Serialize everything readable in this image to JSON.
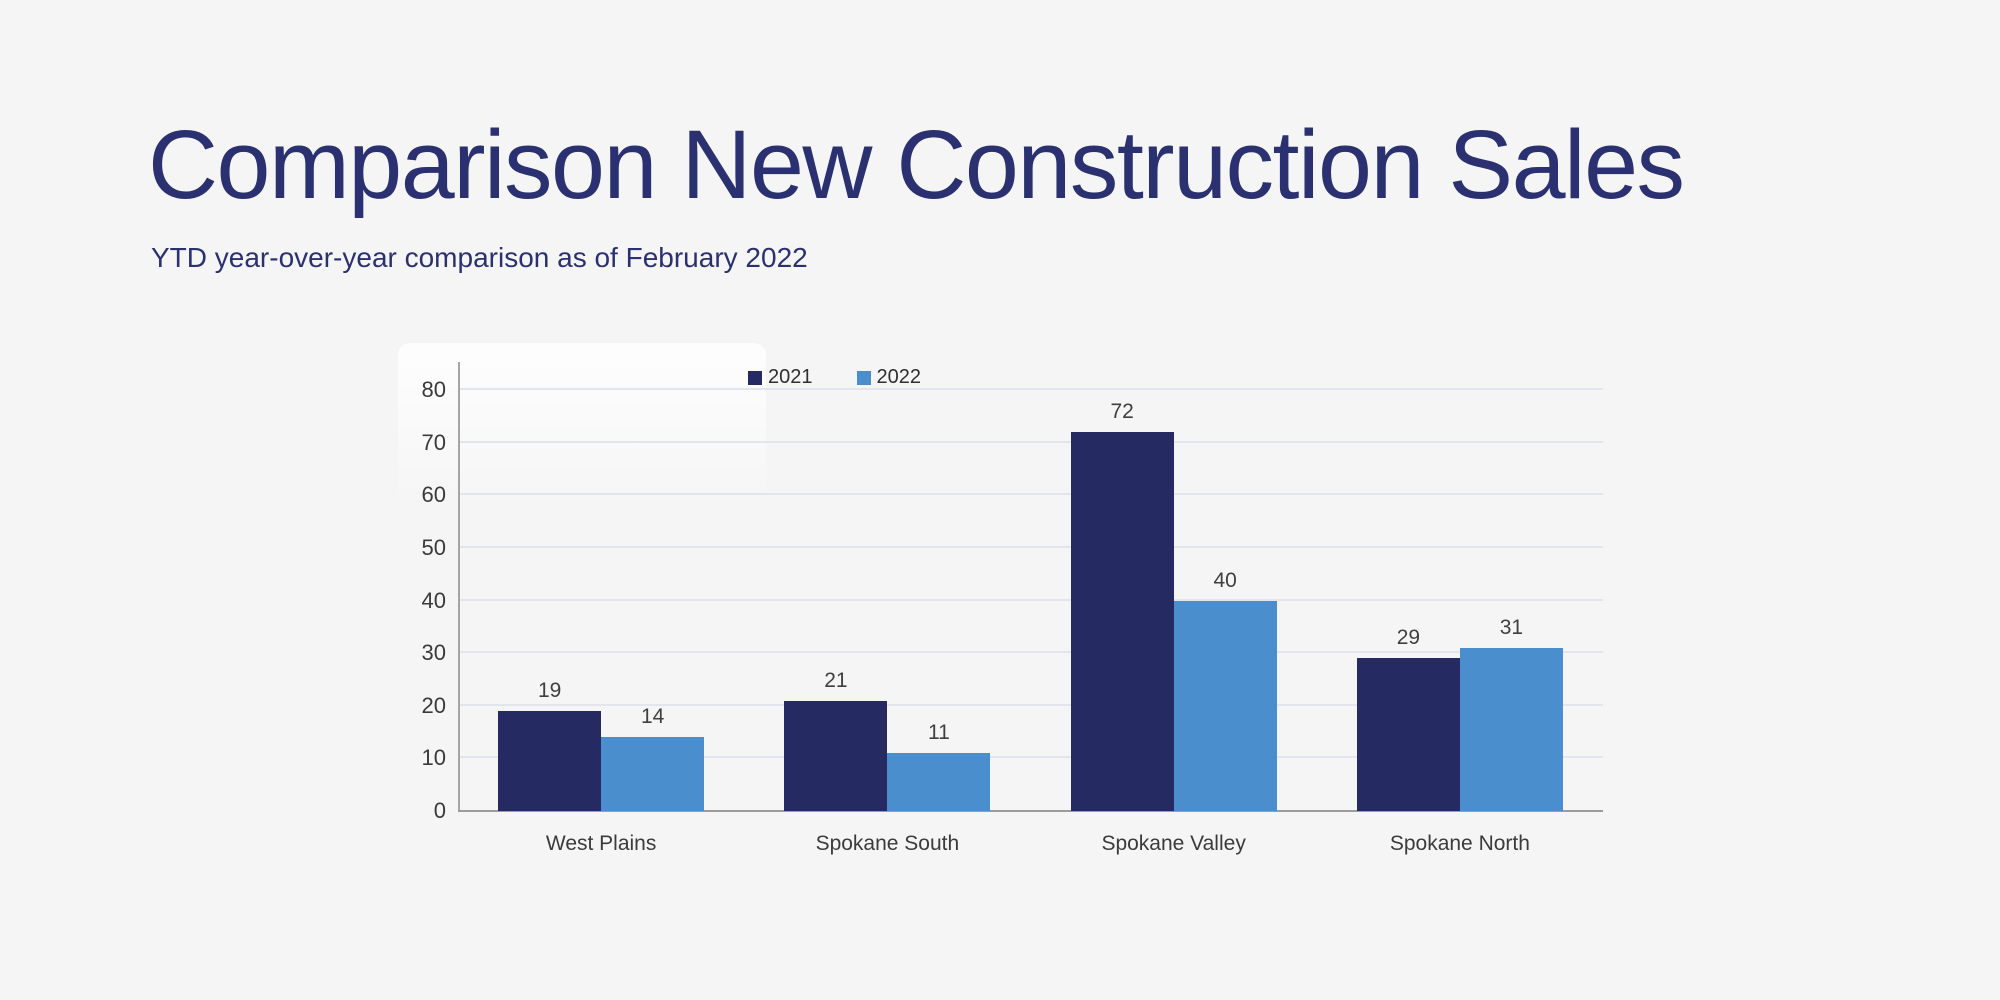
{
  "header": {
    "title": "Comparison New Construction Sales",
    "subtitle": "YTD year-over-year comparison as of February 2022"
  },
  "colors": {
    "background": "#f5f5f6",
    "title_text": "#2b3170",
    "gridline": "#e2e5ee",
    "axis_line": "#a5a5a5",
    "label_text": "#3f3f3f",
    "series_2021": "#252a63",
    "series_2022": "#4b8ecd"
  },
  "chart_data": {
    "type": "bar",
    "categories": [
      "West Plains",
      "Spokane South",
      "Spokane Valley",
      "Spokane North"
    ],
    "series": [
      {
        "name": "2021",
        "color": "#252a63",
        "values": [
          19,
          21,
          72,
          29
        ]
      },
      {
        "name": "2022",
        "color": "#4b8ecd",
        "values": [
          14,
          11,
          40,
          31
        ]
      }
    ],
    "ylim": [
      0,
      80
    ],
    "yticks": [
      0,
      10,
      20,
      30,
      40,
      50,
      60,
      70,
      80
    ],
    "grid": true,
    "legend_position": "top",
    "data_labels": true,
    "title": "",
    "xlabel": "",
    "ylabel": ""
  }
}
